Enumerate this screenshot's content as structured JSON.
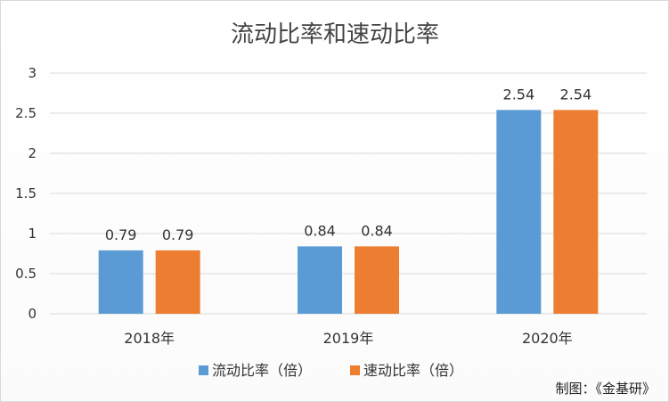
{
  "chart_data": {
    "type": "bar",
    "title": "流动比率和速动比率",
    "categories": [
      "2018年",
      "2019年",
      "2020年"
    ],
    "series": [
      {
        "name": "流动比率（倍）",
        "values": [
          0.79,
          0.84,
          2.54
        ],
        "color": "#5b9bd5"
      },
      {
        "name": "速动比率（倍）",
        "values": [
          0.79,
          0.84,
          2.54
        ],
        "color": "#ed7d31"
      }
    ],
    "ylim": [
      0,
      3
    ],
    "yticks": [
      "0",
      "0.5",
      "1",
      "1.5",
      "2",
      "2.5",
      "3"
    ],
    "grid": true,
    "legend": "bottom"
  },
  "source": "制图：《金基研》"
}
